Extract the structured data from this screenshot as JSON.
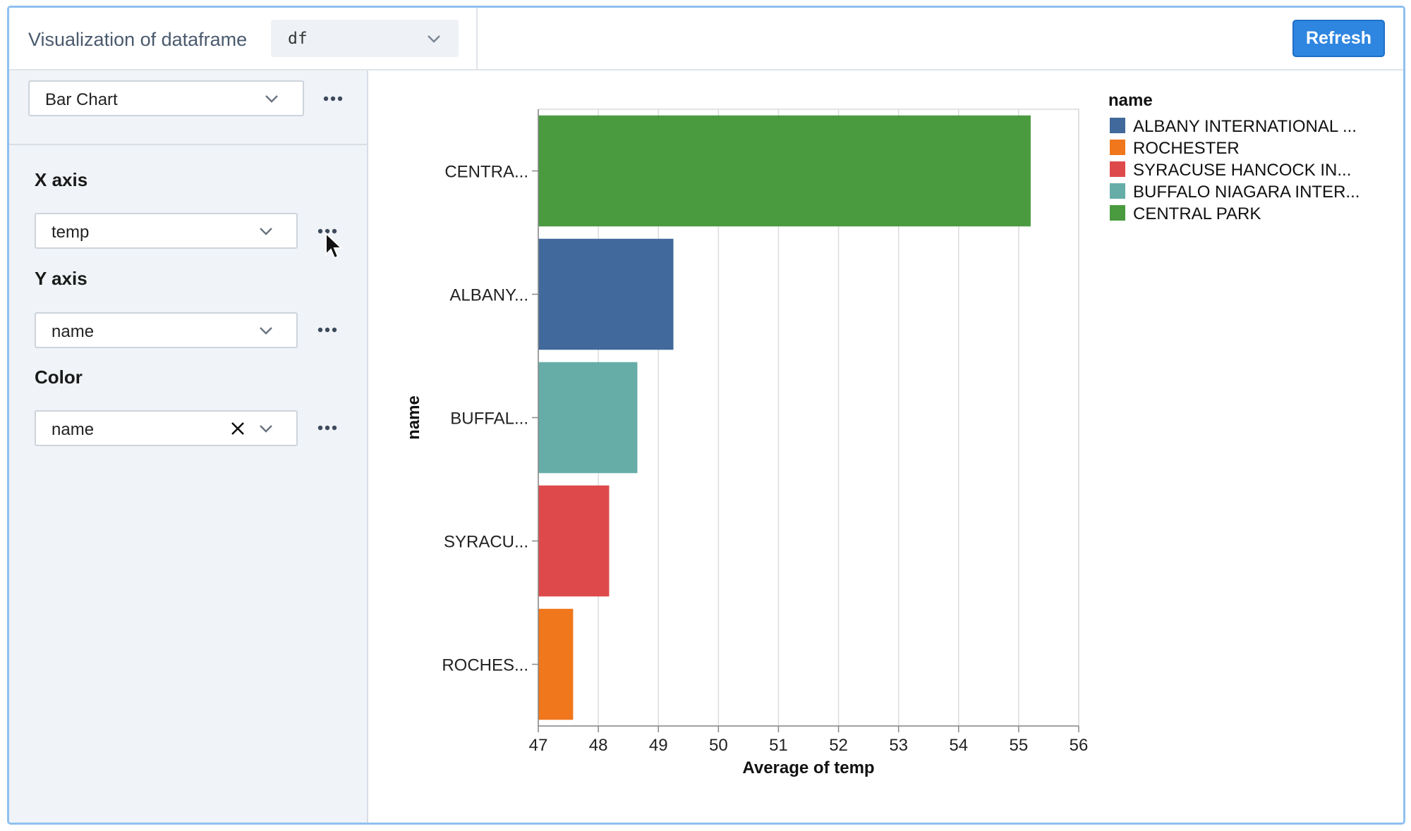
{
  "header": {
    "title": "Visualization of dataframe",
    "dataframe_value": "df",
    "refresh_label": "Refresh"
  },
  "sidebar": {
    "chart_type": "Bar Chart",
    "x_axis": {
      "label": "X axis",
      "value": "temp"
    },
    "y_axis": {
      "label": "Y axis",
      "value": "name"
    },
    "color": {
      "label": "Color",
      "value": "name"
    }
  },
  "chart_data": {
    "type": "bar",
    "orientation": "horizontal",
    "categories": [
      "CENTRA...",
      "ALBANY...",
      "BUFFAL...",
      "SYRACU...",
      "ROCHES..."
    ],
    "values": [
      55.2,
      49.25,
      48.65,
      48.18,
      47.58
    ],
    "colors": [
      "#4a9a40",
      "#41699b",
      "#66ada8",
      "#de4a4b",
      "#f0771b"
    ],
    "xlabel": "Average of temp",
    "ylabel": "name",
    "xlim": [
      47,
      56
    ],
    "xticks": [
      "47",
      "48",
      "49",
      "50",
      "51",
      "52",
      "53",
      "54",
      "55",
      "56"
    ],
    "grid": true,
    "legend": {
      "title": "name",
      "position": "top-right",
      "entries": [
        {
          "label": "ALBANY INTERNATIONAL ...",
          "color": "#41699b"
        },
        {
          "label": "ROCHESTER",
          "color": "#f0771b"
        },
        {
          "label": "SYRACUSE HANCOCK IN...",
          "color": "#de4a4b"
        },
        {
          "label": "BUFFALO NIAGARA INTER...",
          "color": "#66ada8"
        },
        {
          "label": "CENTRAL PARK",
          "color": "#4a9a40"
        }
      ]
    }
  }
}
